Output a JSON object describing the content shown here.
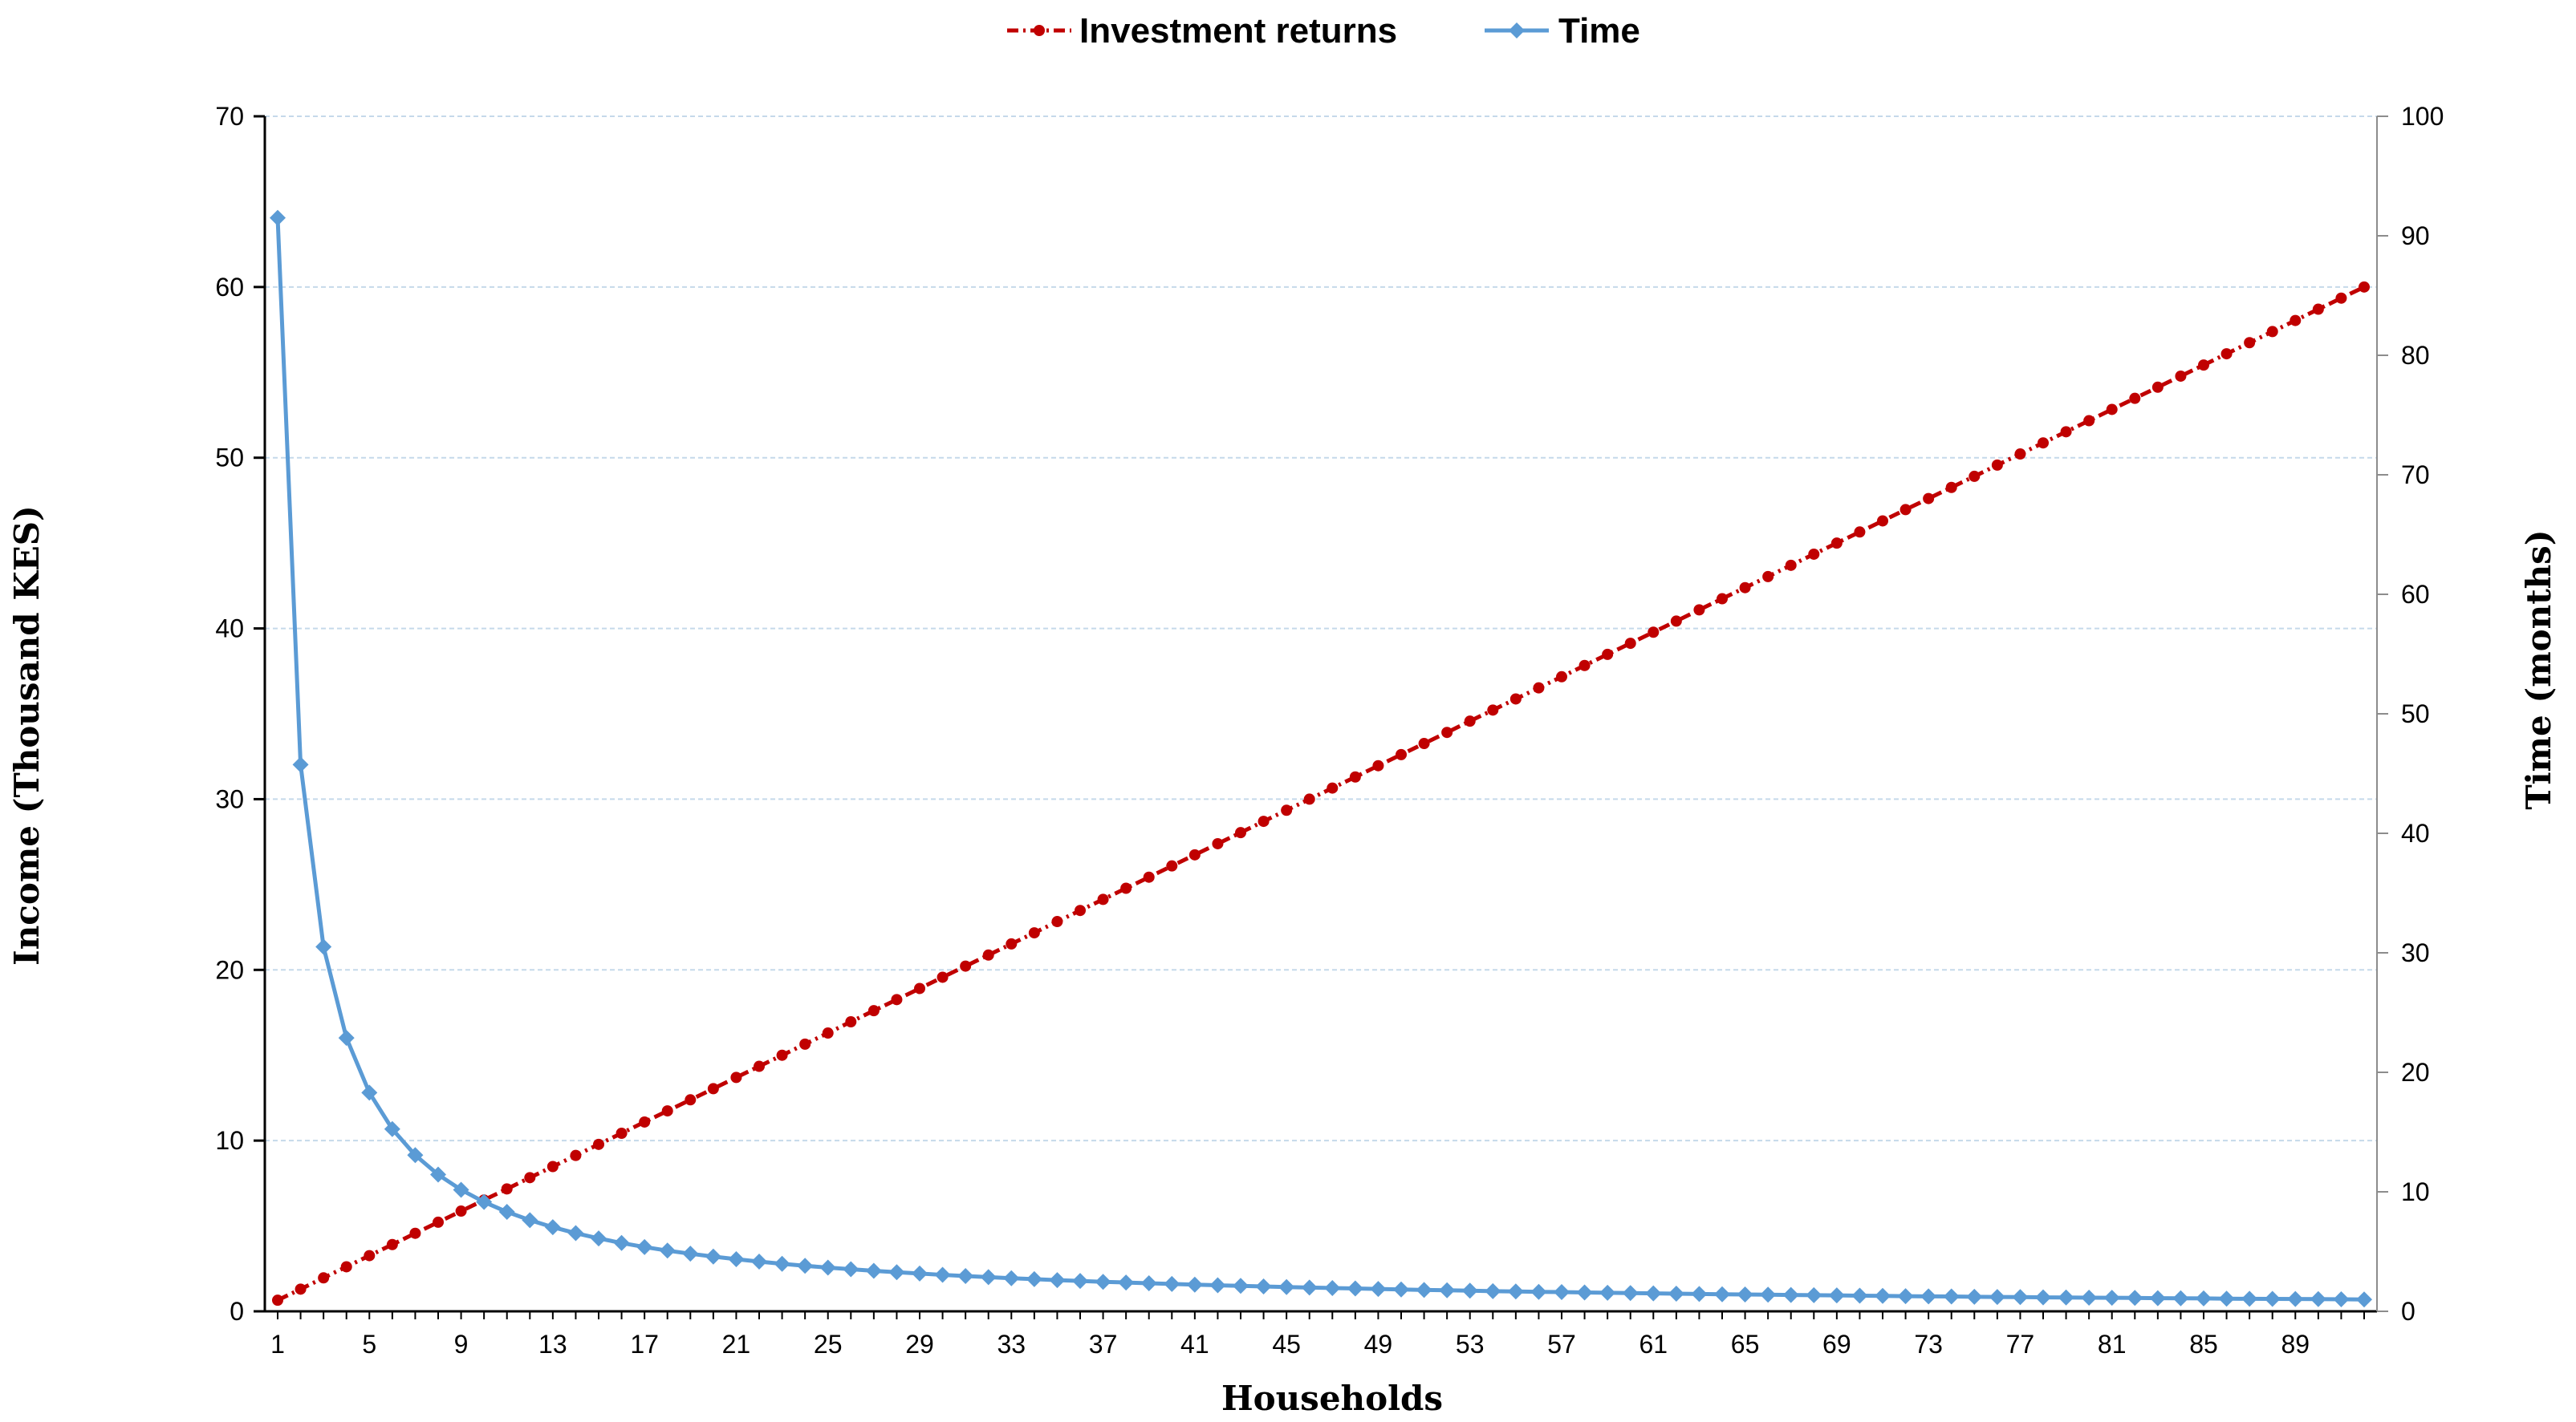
{
  "chart_data": {
    "type": "line",
    "x": [
      1,
      2,
      3,
      4,
      5,
      6,
      7,
      8,
      9,
      10,
      11,
      12,
      13,
      14,
      15,
      16,
      17,
      18,
      19,
      20,
      21,
      22,
      23,
      24,
      25,
      26,
      27,
      28,
      29,
      30,
      31,
      32,
      33,
      34,
      35,
      36,
      37,
      38,
      39,
      40,
      41,
      42,
      43,
      44,
      45,
      46,
      47,
      48,
      49,
      50,
      51,
      52,
      53,
      54,
      55,
      56,
      57,
      58,
      59,
      60,
      61,
      62,
      63,
      64,
      65,
      66,
      67,
      68,
      69,
      70,
      71,
      72,
      73,
      74,
      75,
      76,
      77,
      78,
      79,
      80,
      81,
      82,
      83,
      84,
      85,
      86,
      87,
      88,
      89,
      90,
      91,
      92
    ],
    "x_tick_labels": [
      "1",
      "5",
      "9",
      "13",
      "17",
      "21",
      "25",
      "29",
      "33",
      "37",
      "41",
      "45",
      "49",
      "53",
      "57",
      "61",
      "65",
      "69",
      "73",
      "77",
      "81",
      "85",
      "89"
    ],
    "xlabel": "Households",
    "ylabel": "Income (Thousand KES)",
    "y2label": "Time (months)",
    "ylim": [
      0,
      70
    ],
    "y2lim": [
      0,
      100
    ],
    "y_ticks": [
      0,
      10,
      20,
      30,
      40,
      50,
      60,
      70
    ],
    "y2_ticks": [
      0,
      10,
      20,
      30,
      40,
      50,
      60,
      70,
      80,
      90,
      100
    ],
    "grid": true,
    "legend_position": "top-center",
    "series": [
      {
        "name": "Investment returns",
        "axis": "left",
        "color": "#c00000",
        "line_style": "dash-dot",
        "marker": "circle",
        "values": [
          0.65,
          1.3,
          1.96,
          2.61,
          3.26,
          3.91,
          4.57,
          5.22,
          5.87,
          6.52,
          7.17,
          7.83,
          8.48,
          9.13,
          9.78,
          10.43,
          11.09,
          11.74,
          12.39,
          13.04,
          13.7,
          14.35,
          15.0,
          15.65,
          16.3,
          16.96,
          17.61,
          18.26,
          18.91,
          19.57,
          20.22,
          20.87,
          21.52,
          22.17,
          22.83,
          23.48,
          24.13,
          24.78,
          25.43,
          26.09,
          26.74,
          27.39,
          28.04,
          28.7,
          29.35,
          30.0,
          30.65,
          31.3,
          31.96,
          32.61,
          33.26,
          33.91,
          34.57,
          35.22,
          35.87,
          36.52,
          37.17,
          37.83,
          38.48,
          39.13,
          39.78,
          40.43,
          41.09,
          41.74,
          42.39,
          43.04,
          43.7,
          44.35,
          45.0,
          45.65,
          46.3,
          46.96,
          47.61,
          48.26,
          48.91,
          49.57,
          50.22,
          50.87,
          51.52,
          52.17,
          52.83,
          53.48,
          54.13,
          54.78,
          55.43,
          56.09,
          56.74,
          57.39,
          58.04,
          58.7,
          59.35,
          60.0
        ]
      },
      {
        "name": "Time",
        "axis": "right",
        "color": "#5b9bd5",
        "line_style": "solid",
        "marker": "diamond",
        "values": [
          91.5,
          45.75,
          30.5,
          22.88,
          18.3,
          15.25,
          13.07,
          11.44,
          10.17,
          9.15,
          8.32,
          7.63,
          7.04,
          6.54,
          6.1,
          5.72,
          5.38,
          5.08,
          4.82,
          4.58,
          4.36,
          4.16,
          3.98,
          3.81,
          3.66,
          3.52,
          3.39,
          3.27,
          3.16,
          3.05,
          2.95,
          2.86,
          2.77,
          2.69,
          2.61,
          2.54,
          2.47,
          2.41,
          2.35,
          2.29,
          2.23,
          2.18,
          2.13,
          2.08,
          2.03,
          1.99,
          1.95,
          1.91,
          1.87,
          1.83,
          1.79,
          1.76,
          1.73,
          1.69,
          1.66,
          1.63,
          1.61,
          1.58,
          1.55,
          1.53,
          1.5,
          1.48,
          1.45,
          1.43,
          1.41,
          1.39,
          1.37,
          1.35,
          1.33,
          1.31,
          1.29,
          1.27,
          1.25,
          1.24,
          1.22,
          1.2,
          1.19,
          1.17,
          1.16,
          1.14,
          1.13,
          1.12,
          1.1,
          1.09,
          1.08,
          1.06,
          1.05,
          1.04,
          1.03,
          1.02,
          1.01,
          0.99
        ]
      }
    ]
  }
}
